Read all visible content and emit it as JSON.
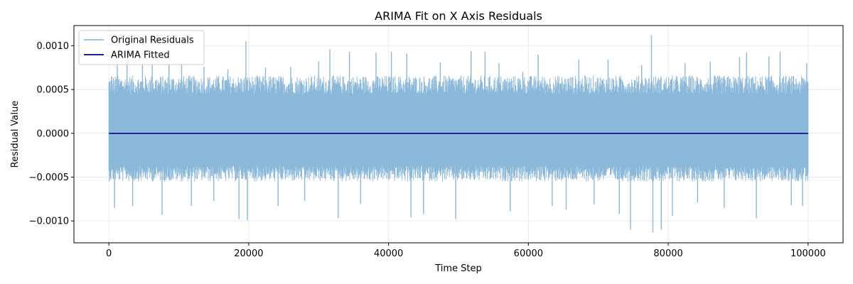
{
  "chart_data": {
    "type": "line",
    "title": "ARIMA Fit on X Axis Residuals",
    "xlabel": "Time Step",
    "ylabel": "Residual Value",
    "xlim": [
      -5000,
      105000
    ],
    "ylim": [
      -0.00125,
      0.00123
    ],
    "x_ticks": [
      0,
      20000,
      40000,
      60000,
      80000,
      100000
    ],
    "x_tick_labels": [
      "0",
      "20000",
      "40000",
      "60000",
      "80000",
      "100000"
    ],
    "y_ticks": [
      -0.001,
      -0.0005,
      0.0,
      0.0005,
      0.001
    ],
    "y_tick_labels": [
      "−0.0010",
      "−0.0005",
      "0.0000",
      "0.0005",
      "0.0010"
    ],
    "grid": true,
    "legend_position": "top-left",
    "series": [
      {
        "name": "Original Residuals",
        "color": "#8cb8d9",
        "x_range": [
          0,
          100000
        ],
        "y_range": [
          -0.00113,
          0.00112
        ],
        "typical_envelope": [
          -0.0005,
          0.0006
        ]
      },
      {
        "name": "ARIMA Fitted",
        "color": "#00008b",
        "x": [
          0,
          100000
        ],
        "y": [
          0.0,
          0.0
        ]
      }
    ],
    "spikes": [
      {
        "x": 400,
        "y": 0.00065
      },
      {
        "x": 800,
        "y": -0.00085
      },
      {
        "x": 1200,
        "y": 0.0008
      },
      {
        "x": 2600,
        "y": 0.00085
      },
      {
        "x": 3400,
        "y": -0.00083
      },
      {
        "x": 4800,
        "y": 0.00081
      },
      {
        "x": 6200,
        "y": 0.00078
      },
      {
        "x": 7600,
        "y": -0.00093
      },
      {
        "x": 8600,
        "y": 0.00078
      },
      {
        "x": 10400,
        "y": 0.00081
      },
      {
        "x": 11800,
        "y": -0.00083
      },
      {
        "x": 13600,
        "y": 0.00076
      },
      {
        "x": 15000,
        "y": -0.00077
      },
      {
        "x": 17000,
        "y": 0.00073
      },
      {
        "x": 18600,
        "y": -0.00098
      },
      {
        "x": 19600,
        "y": 0.00105
      },
      {
        "x": 19800,
        "y": -0.00099
      },
      {
        "x": 22400,
        "y": 0.00075
      },
      {
        "x": 24200,
        "y": -0.00083
      },
      {
        "x": 26000,
        "y": 0.00076
      },
      {
        "x": 28000,
        "y": -0.00077
      },
      {
        "x": 30000,
        "y": 0.00082
      },
      {
        "x": 31600,
        "y": 0.00096
      },
      {
        "x": 32800,
        "y": -0.00097
      },
      {
        "x": 34400,
        "y": 0.00093
      },
      {
        "x": 36000,
        "y": -0.0008
      },
      {
        "x": 38200,
        "y": 0.00092
      },
      {
        "x": 40400,
        "y": 0.00093
      },
      {
        "x": 42600,
        "y": 0.00091
      },
      {
        "x": 43200,
        "y": -0.00096
      },
      {
        "x": 45000,
        "y": -0.00092
      },
      {
        "x": 47400,
        "y": 0.00081
      },
      {
        "x": 49600,
        "y": -0.00098
      },
      {
        "x": 51800,
        "y": 0.00094
      },
      {
        "x": 53800,
        "y": 0.00093
      },
      {
        "x": 55800,
        "y": 0.0008
      },
      {
        "x": 57400,
        "y": -0.00089
      },
      {
        "x": 59200,
        "y": 0.0007
      },
      {
        "x": 61400,
        "y": 0.0009
      },
      {
        "x": 63400,
        "y": -0.00083
      },
      {
        "x": 65400,
        "y": -0.00087
      },
      {
        "x": 67200,
        "y": 0.00084
      },
      {
        "x": 69400,
        "y": -0.00081
      },
      {
        "x": 71400,
        "y": 0.00084
      },
      {
        "x": 73000,
        "y": -0.00092
      },
      {
        "x": 74600,
        "y": -0.0011
      },
      {
        "x": 76200,
        "y": 0.00078
      },
      {
        "x": 77600,
        "y": 0.00112
      },
      {
        "x": 77800,
        "y": -0.00113
      },
      {
        "x": 79000,
        "y": -0.0011
      },
      {
        "x": 80600,
        "y": -0.00094
      },
      {
        "x": 82400,
        "y": 0.0008
      },
      {
        "x": 84200,
        "y": -0.00079
      },
      {
        "x": 86000,
        "y": 0.00082
      },
      {
        "x": 88000,
        "y": -0.00085
      },
      {
        "x": 90200,
        "y": 0.00087
      },
      {
        "x": 91200,
        "y": 0.00092
      },
      {
        "x": 92600,
        "y": -0.00097
      },
      {
        "x": 94400,
        "y": 0.00088
      },
      {
        "x": 96000,
        "y": 0.00093
      },
      {
        "x": 97600,
        "y": -0.00082
      },
      {
        "x": 99200,
        "y": -0.00083
      },
      {
        "x": 99800,
        "y": 0.0008
      }
    ]
  }
}
